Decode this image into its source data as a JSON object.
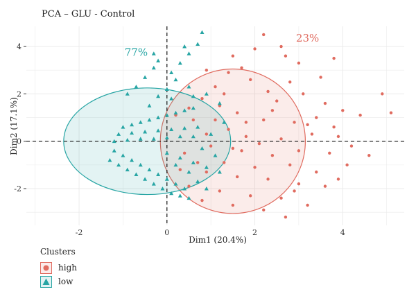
{
  "chart_data": {
    "type": "scatter",
    "title": "PCA – GLU - Control",
    "xlabel": "Dim1 (20.4%)",
    "ylabel": "Dim2 (17.1%)",
    "xlim": [
      -3.2,
      5.4
    ],
    "ylim": [
      -3.55,
      4.85
    ],
    "xticks": [
      -2,
      0,
      2,
      4
    ],
    "yticks": [
      -2,
      0,
      2,
      4
    ],
    "grid": true,
    "reference_lines": {
      "x": 0,
      "y": 0,
      "style": "dashed"
    },
    "legend": {
      "title": "Clusters",
      "position": "bottom-left",
      "entries": [
        {
          "label": "high",
          "shape": "circle"
        },
        {
          "label": "low",
          "shape": "triangle"
        }
      ]
    },
    "series": [
      {
        "name": "high",
        "color": "#e06b5f",
        "shape": "circle",
        "percent_label": "23%",
        "label_position": [
          3.2,
          4.2
        ],
        "ellipse": {
          "center": [
            1.5,
            0.0
          ],
          "rx": 1.65,
          "ry": 3.05,
          "angle_deg": 0
        },
        "points": [
          [
            0.5,
            1.4
          ],
          [
            0.8,
            1.8
          ],
          [
            1.1,
            2.3
          ],
          [
            1.4,
            2.9
          ],
          [
            1.7,
            3.1
          ],
          [
            2.0,
            3.9
          ],
          [
            2.2,
            4.5
          ],
          [
            2.6,
            4.0
          ],
          [
            1.5,
            3.6
          ],
          [
            0.9,
            3.0
          ],
          [
            3.0,
            3.3
          ],
          [
            3.8,
            3.5
          ],
          [
            3.5,
            2.7
          ],
          [
            2.8,
            2.5
          ],
          [
            2.3,
            2.1
          ],
          [
            1.9,
            2.6
          ],
          [
            1.2,
            1.5
          ],
          [
            0.6,
            0.9
          ],
          [
            1.6,
            1.2
          ],
          [
            2.5,
            1.7
          ],
          [
            3.1,
            2.0
          ],
          [
            3.6,
            1.6
          ],
          [
            4.0,
            1.3
          ],
          [
            4.4,
            1.1
          ],
          [
            4.9,
            2.0
          ],
          [
            5.1,
            1.2
          ],
          [
            3.4,
            1.0
          ],
          [
            2.9,
            0.8
          ],
          [
            2.2,
            0.9
          ],
          [
            1.4,
            0.5
          ],
          [
            0.9,
            0.3
          ],
          [
            1.8,
            0.2
          ],
          [
            2.6,
            0.1
          ],
          [
            3.3,
            0.3
          ],
          [
            3.9,
            0.2
          ],
          [
            4.2,
            -0.2
          ],
          [
            4.6,
            -0.6
          ],
          [
            3.7,
            -0.5
          ],
          [
            3.0,
            -0.4
          ],
          [
            2.4,
            -0.6
          ],
          [
            1.7,
            -0.4
          ],
          [
            1.0,
            -0.2
          ],
          [
            0.4,
            -0.5
          ],
          [
            1.3,
            -0.9
          ],
          [
            2.0,
            -1.1
          ],
          [
            2.8,
            -1.0
          ],
          [
            3.4,
            -1.3
          ],
          [
            3.9,
            -1.6
          ],
          [
            3.6,
            -1.9
          ],
          [
            3.0,
            -1.8
          ],
          [
            2.3,
            -1.6
          ],
          [
            1.6,
            -1.5
          ],
          [
            0.9,
            -1.3
          ],
          [
            0.5,
            -1.9
          ],
          [
            1.2,
            -2.1
          ],
          [
            1.9,
            -2.3
          ],
          [
            2.6,
            -2.4
          ],
          [
            3.2,
            -2.7
          ],
          [
            2.2,
            -2.9
          ],
          [
            1.5,
            -2.7
          ],
          [
            0.8,
            -2.5
          ],
          [
            2.7,
            -3.2
          ],
          [
            1.8,
            0.8
          ],
          [
            2.1,
            -0.1
          ],
          [
            1.1,
            0.9
          ],
          [
            2.4,
            1.3
          ],
          [
            3.2,
            0.7
          ],
          [
            0.7,
            -0.9
          ],
          [
            1.5,
            -0.3
          ],
          [
            2.9,
            -2.1
          ],
          [
            0.2,
            1.1
          ],
          [
            0.3,
            -1.2
          ],
          [
            3.8,
            0.6
          ],
          [
            4.1,
            -1.0
          ],
          [
            1.3,
            2.0
          ],
          [
            2.7,
            3.6
          ]
        ]
      },
      {
        "name": "low",
        "color": "#27a5a4",
        "shape": "triangle",
        "percent_label": "77%",
        "label_position": [
          -0.7,
          3.6
        ],
        "ellipse": {
          "center": [
            -0.45,
            0.0
          ],
          "rx": 1.9,
          "ry": 2.25,
          "angle_deg": 0
        },
        "points": [
          [
            -0.9,
            2.0
          ],
          [
            -0.7,
            2.3
          ],
          [
            -0.5,
            2.7
          ],
          [
            -0.3,
            3.1
          ],
          [
            -0.2,
            3.4
          ],
          [
            -0.3,
            3.7
          ],
          [
            0.1,
            2.9
          ],
          [
            0.3,
            3.3
          ],
          [
            0.5,
            3.7
          ],
          [
            0.7,
            4.1
          ],
          [
            0.8,
            4.6
          ],
          [
            0.4,
            4.0
          ],
          [
            0.2,
            2.6
          ],
          [
            0.0,
            2.2
          ],
          [
            -0.2,
            1.9
          ],
          [
            0.5,
            2.3
          ],
          [
            0.9,
            2.0
          ],
          [
            1.2,
            1.6
          ],
          [
            -1.0,
            0.6
          ],
          [
            -0.8,
            0.7
          ],
          [
            -0.6,
            0.8
          ],
          [
            -0.4,
            0.9
          ],
          [
            -0.2,
            1.0
          ],
          [
            0.0,
            1.1
          ],
          [
            0.2,
            1.2
          ],
          [
            0.4,
            1.3
          ],
          [
            0.6,
            1.4
          ],
          [
            -1.1,
            0.3
          ],
          [
            -0.8,
            0.35
          ],
          [
            -0.5,
            0.4
          ],
          [
            -0.2,
            0.45
          ],
          [
            0.1,
            0.5
          ],
          [
            0.4,
            0.55
          ],
          [
            0.7,
            0.6
          ],
          [
            -1.2,
            0.0
          ],
          [
            -0.9,
            0.05
          ],
          [
            -0.6,
            0.1
          ],
          [
            -0.3,
            0.1
          ],
          [
            0.0,
            0.15
          ],
          [
            0.3,
            0.2
          ],
          [
            0.6,
            0.2
          ],
          [
            -1.2,
            -0.4
          ],
          [
            -1.0,
            -0.6
          ],
          [
            -0.8,
            -0.8
          ],
          [
            -0.6,
            -1.0
          ],
          [
            -0.4,
            -1.2
          ],
          [
            -0.2,
            -1.4
          ],
          [
            0.0,
            -1.6
          ],
          [
            0.2,
            -1.8
          ],
          [
            0.4,
            -2.0
          ],
          [
            -1.3,
            -0.8
          ],
          [
            -1.1,
            -1.0
          ],
          [
            -0.9,
            -1.2
          ],
          [
            -0.7,
            -1.4
          ],
          [
            -0.5,
            -1.6
          ],
          [
            -0.3,
            -1.8
          ],
          [
            -0.1,
            -2.0
          ],
          [
            0.1,
            -2.2
          ],
          [
            0.3,
            -2.3
          ],
          [
            0.5,
            -2.4
          ],
          [
            0.0,
            -0.5
          ],
          [
            0.3,
            -0.7
          ],
          [
            0.6,
            -0.9
          ],
          [
            0.9,
            -1.1
          ],
          [
            1.1,
            -0.6
          ],
          [
            0.8,
            -0.3
          ],
          [
            1.0,
            0.3
          ],
          [
            1.3,
            0.8
          ],
          [
            0.2,
            -1.0
          ],
          [
            0.5,
            -1.3
          ],
          [
            0.7,
            -1.7
          ],
          [
            0.9,
            -2.0
          ],
          [
            1.2,
            -1.3
          ],
          [
            -0.4,
            1.5
          ],
          [
            0.1,
            1.8
          ],
          [
            0.6,
            1.9
          ]
        ]
      }
    ]
  }
}
